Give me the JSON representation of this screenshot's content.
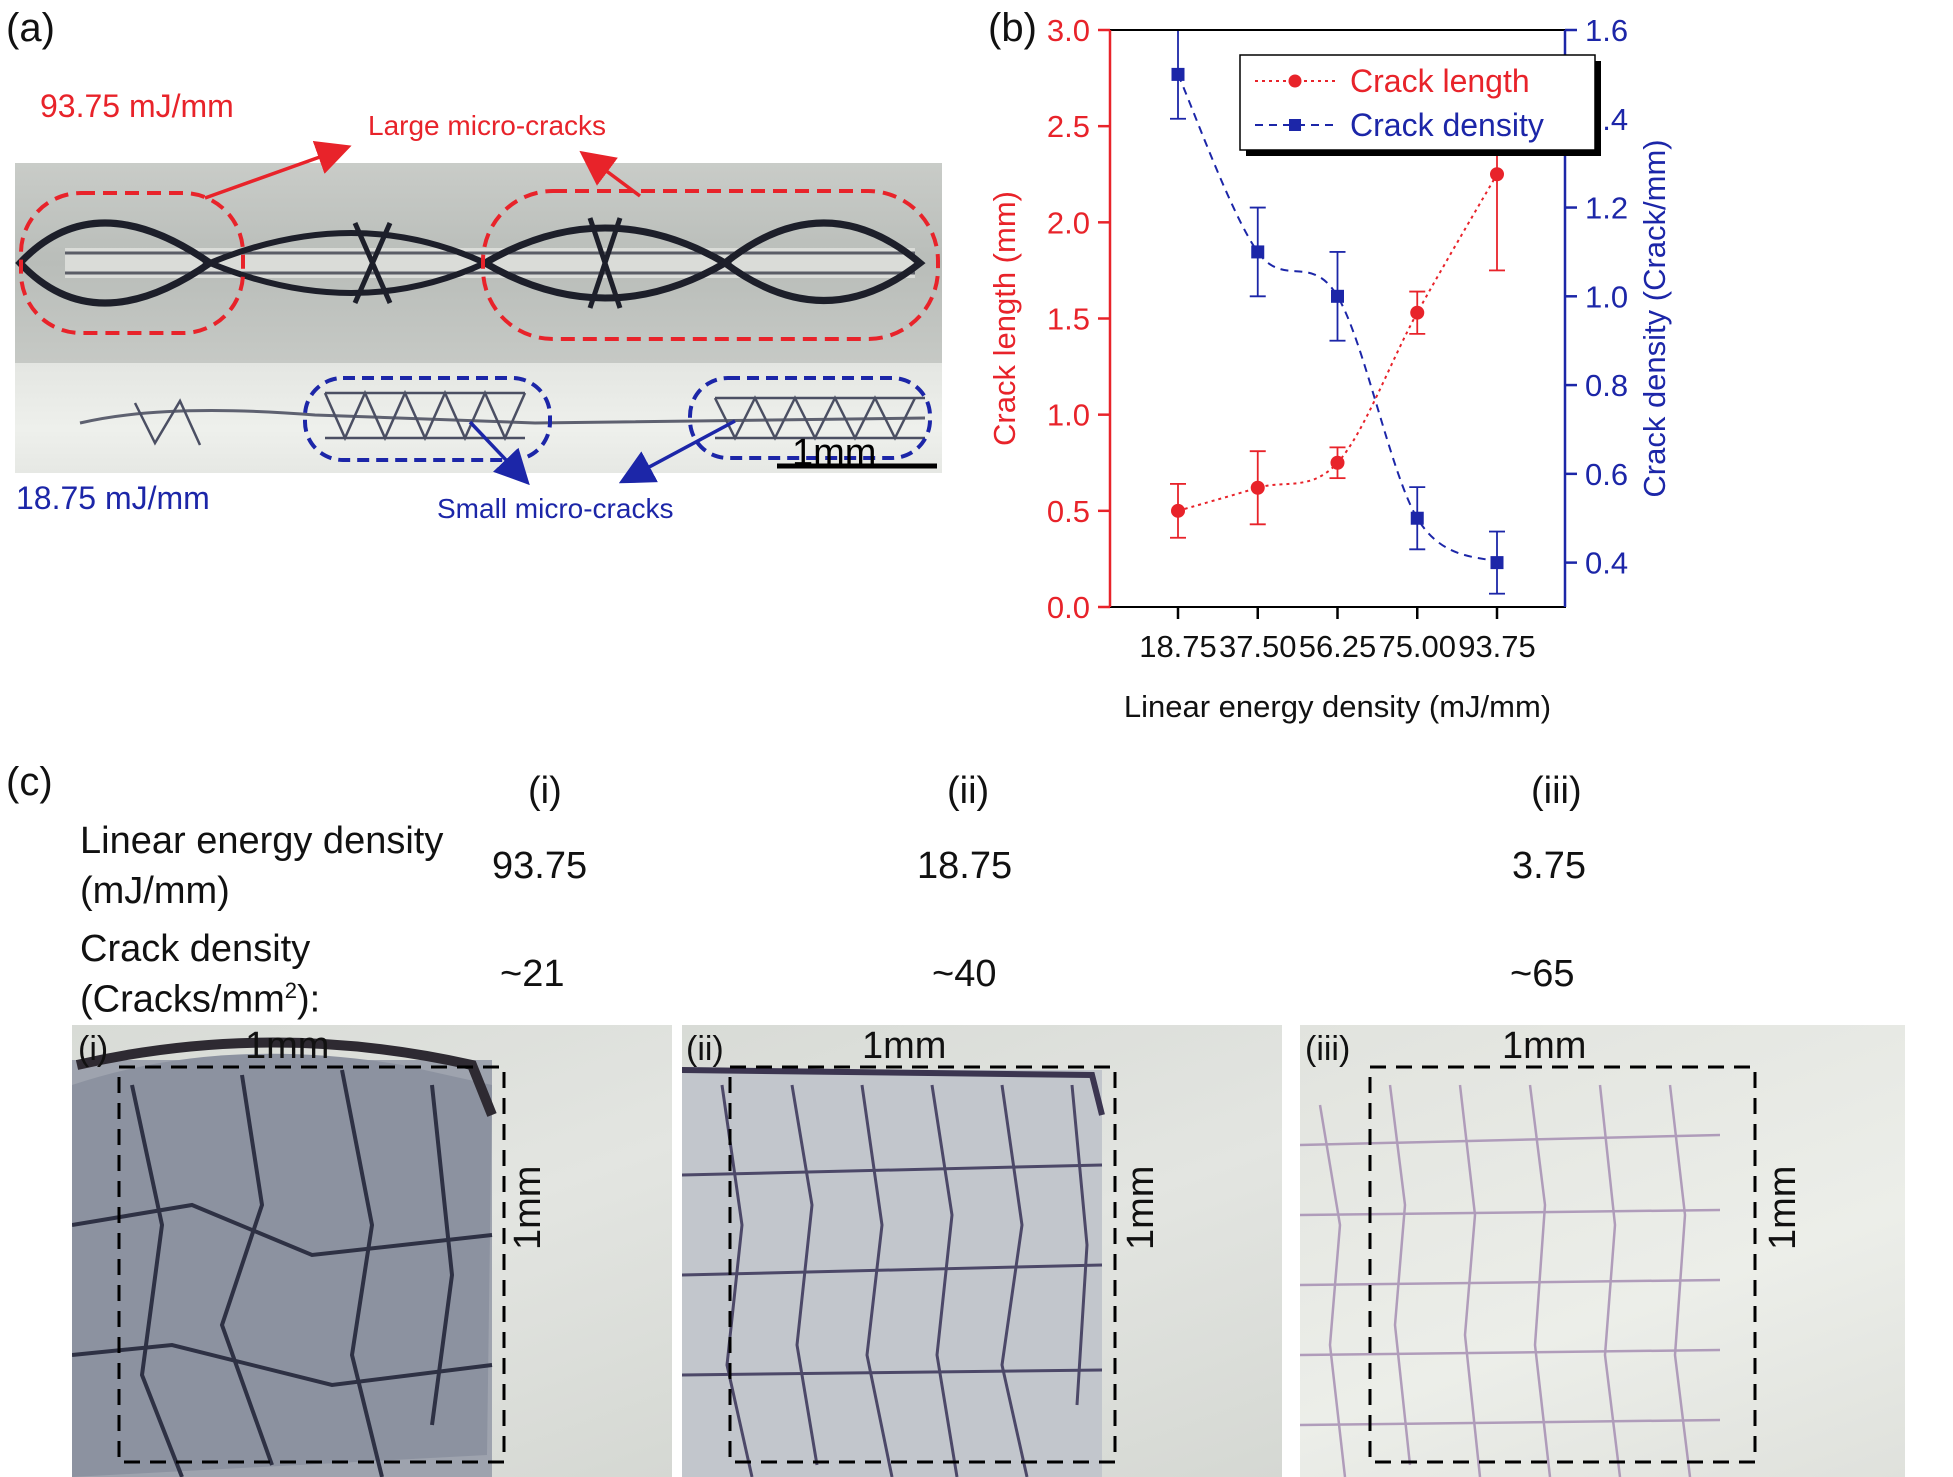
{
  "panel_a": {
    "label": "(a)",
    "high_energy": "93.75 mJ/mm",
    "low_energy": "18.75 mJ/mm",
    "large_cracks": "Large micro-cracks",
    "small_cracks": "Small micro-cracks",
    "scale_bar": "1mm"
  },
  "panel_b": {
    "label": "(b)"
  },
  "panel_c": {
    "label": "(c)",
    "col_labels": [
      "(i)",
      "(ii)",
      "(iii)"
    ],
    "row1_label_line1": "Linear energy density",
    "row1_label_line2": "(mJ/mm)",
    "row1_values": [
      "93.75",
      "18.75",
      "3.75"
    ],
    "row2_label_line1": "Crack density",
    "row2_label_line2_pre": "(Cracks/mm",
    "row2_label_line2_sup": "2",
    "row2_label_line2_post": "):",
    "row2_values": [
      "~21",
      "~40",
      "~65"
    ],
    "images": [
      {
        "tag": "(i)",
        "width_label": "1mm",
        "height_label": "1mm"
      },
      {
        "tag": "(ii)",
        "width_label": "1mm",
        "height_label": "1mm"
      },
      {
        "tag": "(iii)",
        "width_label": "1mm",
        "height_label": "1mm"
      }
    ]
  },
  "chart_data": {
    "type": "line",
    "categories": [
      "18.75",
      "37.50",
      "56.25",
      "75.00",
      "93.75"
    ],
    "xlabel": "Linear energy density (mJ/mm)",
    "ylabel": "Crack length (mm)",
    "y2label": "Crack density (Crack/mm)",
    "ylim": [
      0.0,
      3.0
    ],
    "y2lim": [
      0.3,
      1.6
    ],
    "yticks": [
      "0.0",
      "0.5",
      "1.0",
      "1.5",
      "2.0",
      "2.5",
      "3.0"
    ],
    "y2ticks": [
      "0.4",
      "0.6",
      "0.8",
      "1.0",
      "1.2",
      "1.4",
      "1.6"
    ],
    "legend_position": "top-center",
    "series": [
      {
        "name": "Crack length",
        "axis": "left",
        "color": "#e8232a",
        "marker": "circle",
        "values": [
          0.5,
          0.62,
          0.75,
          1.53,
          2.25
        ],
        "errors": [
          0.14,
          0.19,
          0.08,
          0.11,
          0.5
        ]
      },
      {
        "name": "Crack density",
        "axis": "right",
        "color": "#1c26a8",
        "marker": "square",
        "values": [
          1.5,
          1.1,
          1.0,
          0.5,
          0.4
        ],
        "errors": [
          0.1,
          0.1,
          0.1,
          0.07,
          0.07
        ]
      }
    ]
  }
}
